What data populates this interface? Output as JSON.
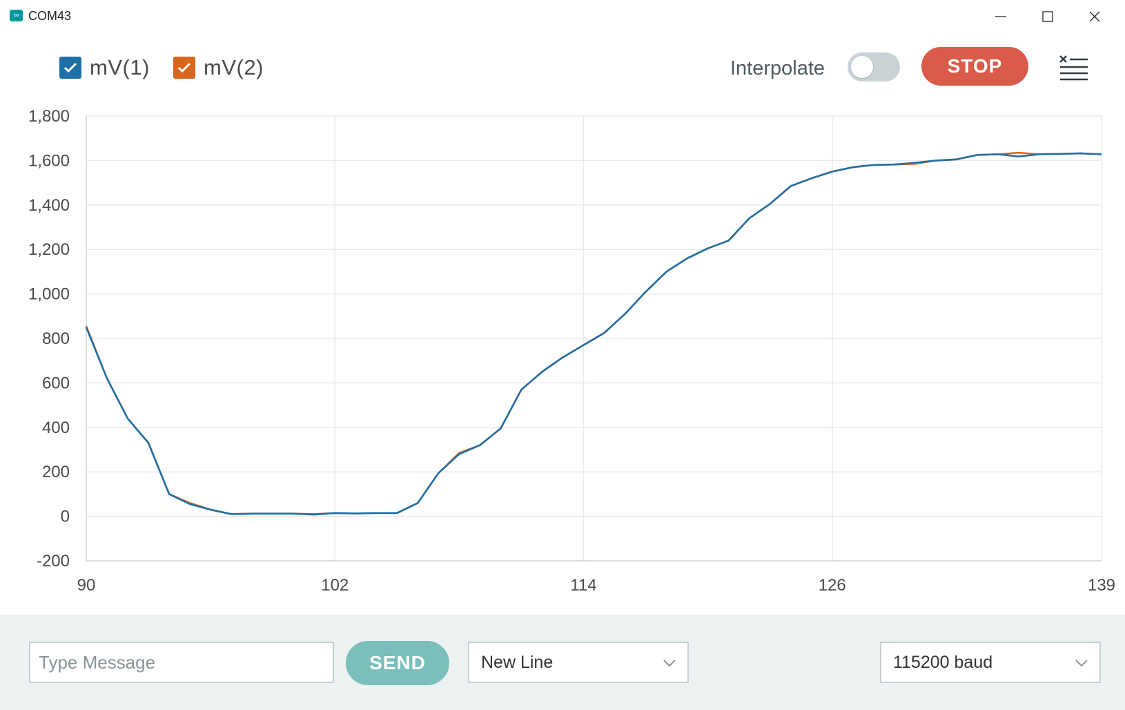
{
  "window": {
    "title": "COM43",
    "app_icon": "arduino-infinity-icon"
  },
  "toolbar": {
    "legend": [
      {
        "label": "mV(1)",
        "color": "#1f6fa6",
        "checked": true
      },
      {
        "label": "mV(2)",
        "color": "#d9661c",
        "checked": true
      }
    ],
    "interpolate_label": "Interpolate",
    "interpolate_on": false,
    "stop_label": "STOP",
    "clear_icon": "clear-lines-icon"
  },
  "chart_data": {
    "type": "line",
    "title": "",
    "xlabel": "",
    "ylabel": "",
    "xlim": [
      90,
      139
    ],
    "ylim": [
      -200,
      1800
    ],
    "x_ticks": [
      "90",
      "102",
      "114",
      "126",
      "139"
    ],
    "y_ticks": [
      "-200",
      "0",
      "200",
      "400",
      "600",
      "800",
      "1,000",
      "1,200",
      "1,400",
      "1,600",
      "1,800"
    ],
    "grid": true,
    "x": [
      90,
      91,
      92,
      93,
      94,
      95,
      96,
      97,
      98,
      99,
      100,
      101,
      102,
      103,
      104,
      105,
      106,
      107,
      108,
      109,
      110,
      111,
      112,
      113,
      114,
      115,
      116,
      117,
      118,
      119,
      120,
      121,
      122,
      123,
      124,
      125,
      126,
      127,
      128,
      129,
      130,
      131,
      132,
      133,
      134,
      135,
      136,
      137,
      138,
      139
    ],
    "series": [
      {
        "name": "mV(2)",
        "color": "#d9661c",
        "values": [
          855,
          620,
          440,
          330,
          100,
          60,
          30,
          10,
          12,
          12,
          12,
          10,
          15,
          13,
          15,
          15,
          60,
          195,
          285,
          320,
          395,
          570,
          650,
          715,
          770,
          825,
          910,
          1010,
          1100,
          1160,
          1205,
          1240,
          1340,
          1405,
          1485,
          1520,
          1550,
          1570,
          1580,
          1582,
          1585,
          1600,
          1605,
          1625,
          1628,
          1635,
          1628,
          1630,
          1632,
          1628
        ]
      },
      {
        "name": "mV(1)",
        "color": "#1f6fa6",
        "values": [
          850,
          620,
          440,
          330,
          100,
          55,
          30,
          10,
          12,
          12,
          12,
          8,
          15,
          13,
          15,
          15,
          60,
          195,
          280,
          320,
          395,
          570,
          650,
          715,
          770,
          825,
          910,
          1010,
          1100,
          1160,
          1205,
          1240,
          1340,
          1405,
          1485,
          1520,
          1550,
          1570,
          1580,
          1582,
          1590,
          1600,
          1605,
          1625,
          1628,
          1618,
          1628,
          1630,
          1632,
          1628
        ]
      }
    ]
  },
  "bottom": {
    "message_placeholder": "Type Message",
    "send_label": "SEND",
    "line_ending": "New Line",
    "baud": "115200 baud"
  }
}
